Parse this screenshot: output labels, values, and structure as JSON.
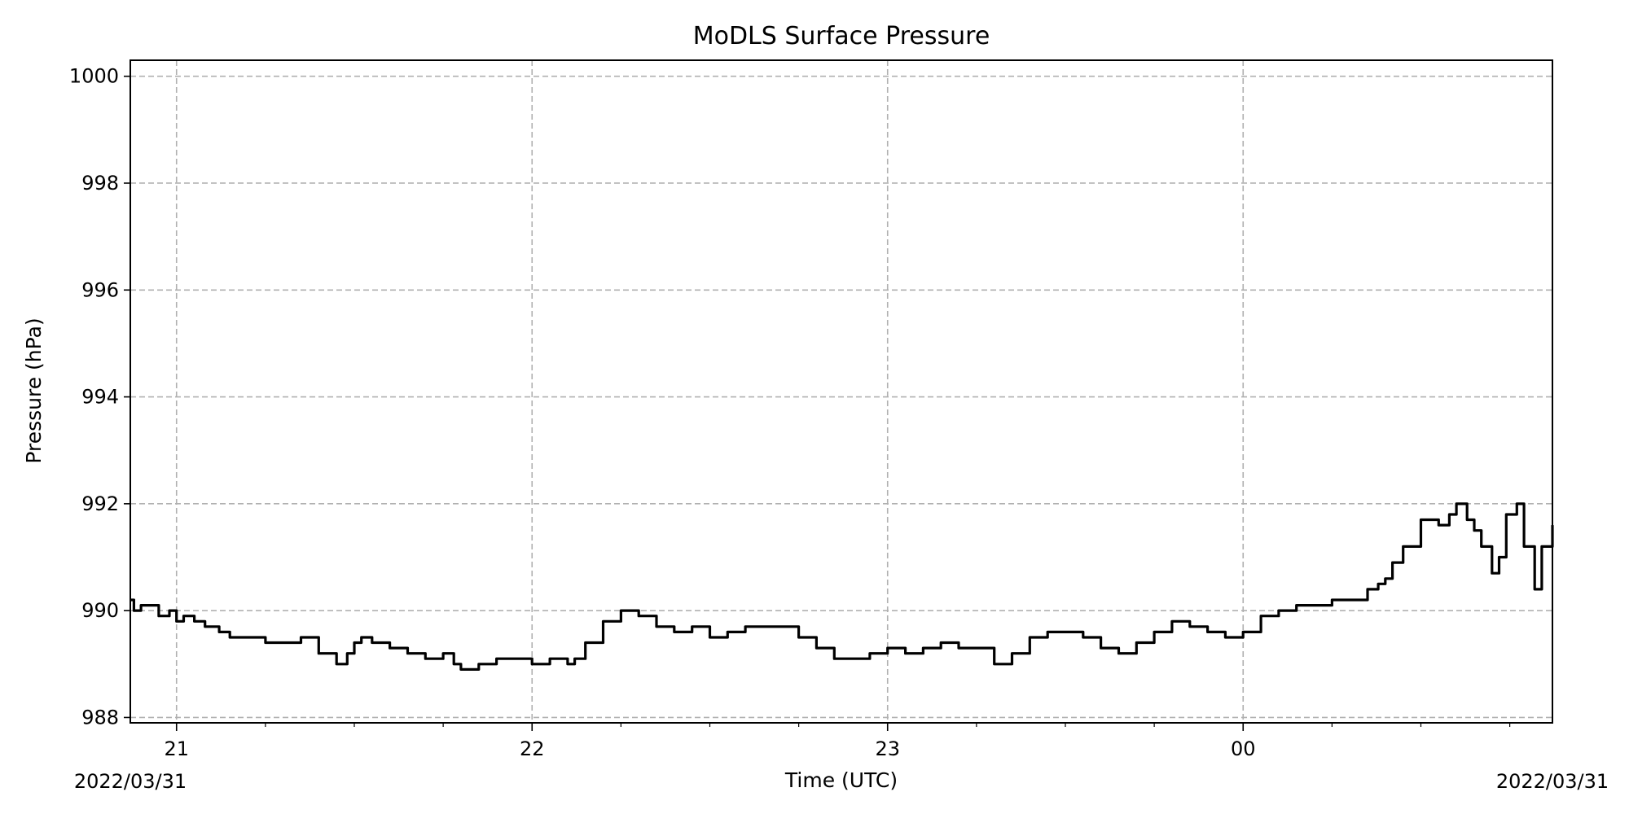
{
  "chart_data": {
    "type": "line",
    "title": "MoDLS Surface Pressure",
    "xlabel": "Time (UTC)",
    "ylabel": "Pressure (hPa)",
    "date_left": "2022/03/31",
    "date_right": "2022/03/31",
    "xlim_hours": [
      20.87,
      24.87
    ],
    "ylim": [
      987.9,
      1000.3
    ],
    "x_ticks": [
      {
        "hour": 21,
        "label": "21"
      },
      {
        "hour": 22,
        "label": "22"
      },
      {
        "hour": 23,
        "label": "23"
      },
      {
        "hour": 24,
        "label": "00"
      }
    ],
    "x_minor_ticks": [
      21.25,
      21.5,
      21.75,
      22.25,
      22.5,
      22.75,
      23.25,
      23.5,
      23.75,
      24.25,
      24.5,
      24.75
    ],
    "y_ticks": [
      988,
      990,
      992,
      994,
      996,
      998,
      1000
    ],
    "grid": true,
    "grid_color": "#b0b0b0",
    "line_color": "#000000",
    "series": [
      {
        "x": [
          20.87,
          20.88,
          20.9,
          20.92,
          20.95,
          20.97,
          20.98,
          21.0,
          21.02,
          21.05,
          21.08,
          21.12,
          21.15,
          21.2,
          21.25,
          21.3,
          21.35,
          21.4,
          21.45,
          21.48,
          21.5,
          21.52,
          21.55,
          21.6,
          21.65,
          21.7,
          21.75,
          21.78,
          21.8,
          21.85,
          21.9,
          21.95,
          22.0,
          22.05,
          22.1,
          22.12,
          22.15,
          22.2,
          22.25,
          22.3,
          22.35,
          22.4,
          22.45,
          22.5,
          22.55,
          22.6,
          22.65,
          22.7,
          22.72,
          22.75,
          22.8,
          22.85,
          22.9,
          22.95,
          23.0,
          23.05,
          23.1,
          23.15,
          23.2,
          23.25,
          23.3,
          23.35,
          23.4,
          23.45,
          23.5,
          23.55,
          23.6,
          23.65,
          23.7,
          23.75,
          23.8,
          23.85,
          23.9,
          23.95,
          24.0,
          24.05,
          24.1,
          24.15,
          24.2,
          24.25,
          24.3,
          24.35,
          24.38,
          24.4,
          24.42,
          24.45,
          24.5,
          24.55,
          24.58,
          24.6,
          24.63,
          24.65,
          24.67,
          24.7,
          24.72,
          24.74,
          24.77,
          24.79,
          24.82,
          24.84,
          24.87
        ],
        "y": [
          990.2,
          990.0,
          990.1,
          990.1,
          989.9,
          989.9,
          990.0,
          989.8,
          989.9,
          989.8,
          989.7,
          989.6,
          989.5,
          989.5,
          989.4,
          989.4,
          989.5,
          989.2,
          989.0,
          989.2,
          989.4,
          989.5,
          989.4,
          989.3,
          989.2,
          989.1,
          989.2,
          989.0,
          988.9,
          989.0,
          989.1,
          989.1,
          989.0,
          989.1,
          989.0,
          989.1,
          989.4,
          989.8,
          990.0,
          989.9,
          989.7,
          989.6,
          989.7,
          989.5,
          989.6,
          989.7,
          989.7,
          989.7,
          989.7,
          989.5,
          989.3,
          989.1,
          989.1,
          989.2,
          989.3,
          989.2,
          989.3,
          989.4,
          989.3,
          989.3,
          989.0,
          989.2,
          989.5,
          989.6,
          989.6,
          989.5,
          989.3,
          989.2,
          989.4,
          989.6,
          989.8,
          989.7,
          989.6,
          989.5,
          989.6,
          989.9,
          990.0,
          990.1,
          990.1,
          990.2,
          990.2,
          990.4,
          990.5,
          990.6,
          990.9,
          991.2,
          991.7,
          991.6,
          991.8,
          992.0,
          991.7,
          991.5,
          991.2,
          990.7,
          991.0,
          991.8,
          992.0,
          991.2,
          990.4,
          991.2,
          991.6
        ]
      }
    ]
  }
}
